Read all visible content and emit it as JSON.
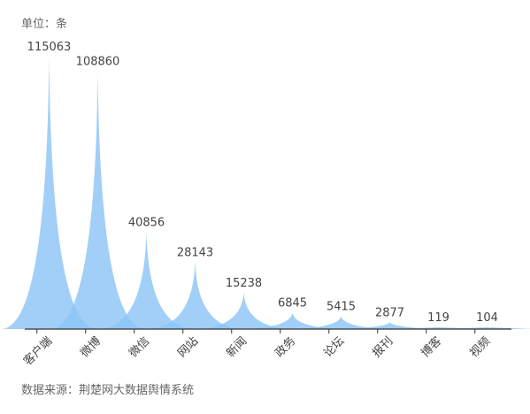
{
  "unit_label": "单位：条",
  "source_label": "数据来源：荆楚网大数据舆情系统",
  "chart_data": {
    "type": "bar",
    "style": "pictorial-spike",
    "categories": [
      "客户端",
      "微博",
      "微信",
      "网站",
      "新闻",
      "政务",
      "论坛",
      "报刊",
      "博客",
      "视频"
    ],
    "values": [
      115063,
      108860,
      40856,
      28143,
      15238,
      6845,
      5415,
      2877,
      119,
      104
    ],
    "ylim": [
      0,
      115063
    ],
    "grid": false,
    "fill_color": "#8cc4f5",
    "axis_color": "#333333"
  }
}
